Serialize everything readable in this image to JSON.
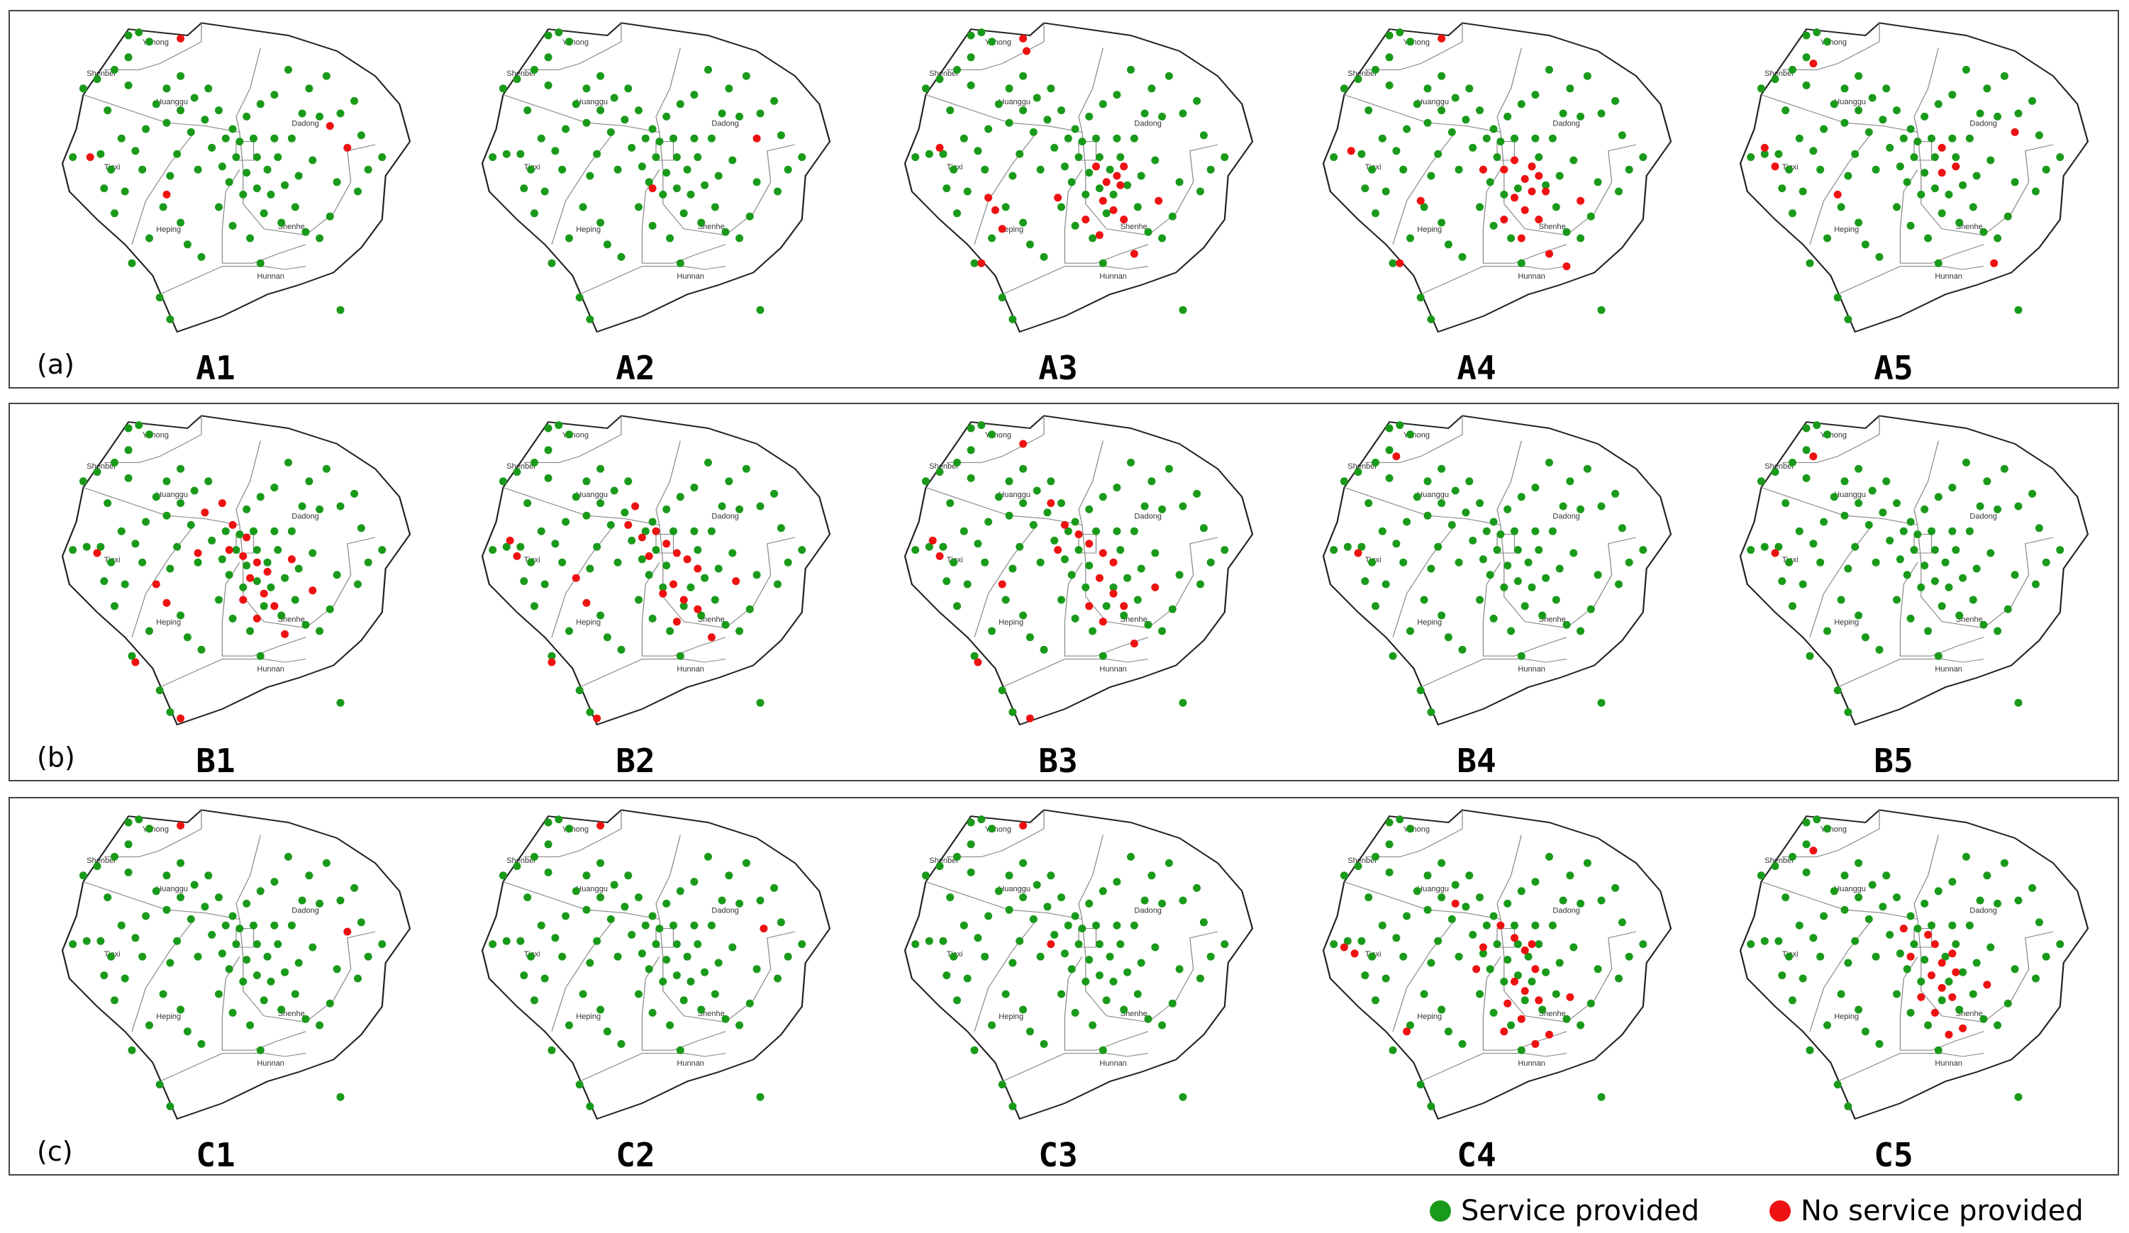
{
  "colors": {
    "service": "#1a9a1a",
    "no_service": "#ee1111",
    "boundary": "#222222",
    "district_line": "#888888"
  },
  "district_labels": {
    "yuhong": "Yuhong",
    "huanggu": "Huanggu",
    "dadong": "Dadong",
    "tiexi": "Tiexi",
    "heping": "Heping",
    "shenhe": "Shenhe",
    "hunnan": "Hunnan",
    "shenbei": "Shenbei"
  },
  "legend": {
    "service_label": "Service provided",
    "no_service_label": "No service provided"
  },
  "panels": [
    {
      "label": "(a)",
      "maps": [
        {
          "title": "A1",
          "red": [
            [
              0.34,
              0.06
            ],
            [
              0.08,
              0.44
            ],
            [
              0.82,
              0.41
            ],
            [
              0.3,
              0.56
            ],
            [
              0.77,
              0.34
            ]
          ]
        },
        {
          "title": "A2",
          "red": [
            [
              0.49,
              0.54
            ],
            [
              0.79,
              0.38
            ]
          ]
        },
        {
          "title": "A3",
          "red": [
            [
              0.34,
              0.06
            ],
            [
              0.1,
              0.41
            ],
            [
              0.24,
              0.57
            ],
            [
              0.26,
              0.61
            ],
            [
              0.28,
              0.67
            ],
            [
              0.55,
              0.47
            ],
            [
              0.58,
              0.52
            ],
            [
              0.61,
              0.5
            ],
            [
              0.57,
              0.58
            ],
            [
              0.6,
              0.61
            ],
            [
              0.63,
              0.64
            ],
            [
              0.52,
              0.64
            ],
            [
              0.56,
              0.69
            ],
            [
              0.66,
              0.75
            ],
            [
              0.73,
              0.58
            ],
            [
              0.63,
              0.47
            ],
            [
              0.62,
              0.53
            ],
            [
              0.44,
              0.57
            ],
            [
              0.22,
              0.78
            ],
            [
              0.35,
              0.1
            ]
          ]
        },
        {
          "title": "A4",
          "red": [
            [
              0.34,
              0.06
            ],
            [
              0.08,
              0.42
            ],
            [
              0.28,
              0.58
            ],
            [
              0.52,
              0.48
            ],
            [
              0.55,
              0.45
            ],
            [
              0.58,
              0.51
            ],
            [
              0.6,
              0.47
            ],
            [
              0.62,
              0.5
            ],
            [
              0.55,
              0.57
            ],
            [
              0.58,
              0.61
            ],
            [
              0.62,
              0.64
            ],
            [
              0.52,
              0.64
            ],
            [
              0.57,
              0.7
            ],
            [
              0.65,
              0.75
            ],
            [
              0.74,
              0.58
            ],
            [
              0.64,
              0.55
            ],
            [
              0.6,
              0.55
            ],
            [
              0.46,
              0.48
            ],
            [
              0.22,
              0.78
            ],
            [
              0.7,
              0.79
            ]
          ]
        },
        {
          "title": "A5",
          "red": [
            [
              0.07,
              0.41
            ],
            [
              0.1,
              0.47
            ],
            [
              0.21,
              0.14
            ],
            [
              0.28,
              0.56
            ],
            [
              0.58,
              0.49
            ],
            [
              0.62,
              0.47
            ],
            [
              0.58,
              0.41
            ],
            [
              0.79,
              0.36
            ],
            [
              0.73,
              0.78
            ]
          ]
        }
      ]
    },
    {
      "label": "(b)",
      "maps": [
        {
          "title": "B1",
          "red": [
            [
              0.1,
              0.45
            ],
            [
              0.27,
              0.55
            ],
            [
              0.49,
              0.36
            ],
            [
              0.53,
              0.4
            ],
            [
              0.48,
              0.44
            ],
            [
              0.52,
              0.46
            ],
            [
              0.56,
              0.48
            ],
            [
              0.59,
              0.51
            ],
            [
              0.54,
              0.53
            ],
            [
              0.58,
              0.58
            ],
            [
              0.61,
              0.62
            ],
            [
              0.52,
              0.6
            ],
            [
              0.56,
              0.66
            ],
            [
              0.64,
              0.71
            ],
            [
              0.72,
              0.57
            ],
            [
              0.66,
              0.47
            ],
            [
              0.3,
              0.61
            ],
            [
              0.21,
              0.8
            ],
            [
              0.39,
              0.45
            ],
            [
              0.41,
              0.32
            ],
            [
              0.46,
              0.29
            ],
            [
              0.34,
              0.98
            ]
          ]
        },
        {
          "title": "B2",
          "red": [
            [
              0.08,
              0.41
            ],
            [
              0.1,
              0.46
            ],
            [
              0.27,
              0.53
            ],
            [
              0.3,
              0.61
            ],
            [
              0.46,
              0.4
            ],
            [
              0.5,
              0.38
            ],
            [
              0.53,
              0.42
            ],
            [
              0.48,
              0.46
            ],
            [
              0.56,
              0.45
            ],
            [
              0.59,
              0.47
            ],
            [
              0.62,
              0.5
            ],
            [
              0.55,
              0.55
            ],
            [
              0.58,
              0.6
            ],
            [
              0.62,
              0.63
            ],
            [
              0.52,
              0.58
            ],
            [
              0.56,
              0.67
            ],
            [
              0.66,
              0.72
            ],
            [
              0.73,
              0.54
            ],
            [
              0.2,
              0.8
            ],
            [
              0.42,
              0.36
            ],
            [
              0.44,
              0.3
            ],
            [
              0.33,
              0.98
            ]
          ]
        },
        {
          "title": "B3",
          "red": [
            [
              0.08,
              0.41
            ],
            [
              0.1,
              0.46
            ],
            [
              0.28,
              0.55
            ],
            [
              0.34,
              0.1
            ],
            [
              0.46,
              0.36
            ],
            [
              0.5,
              0.39
            ],
            [
              0.53,
              0.42
            ],
            [
              0.57,
              0.45
            ],
            [
              0.6,
              0.48
            ],
            [
              0.56,
              0.53
            ],
            [
              0.6,
              0.58
            ],
            [
              0.63,
              0.62
            ],
            [
              0.53,
              0.62
            ],
            [
              0.57,
              0.67
            ],
            [
              0.66,
              0.74
            ],
            [
              0.72,
              0.56
            ],
            [
              0.42,
              0.29
            ],
            [
              0.44,
              0.44
            ],
            [
              0.21,
              0.8
            ],
            [
              0.36,
              0.98
            ]
          ]
        },
        {
          "title": "B4",
          "red": [
            [
              0.1,
              0.45
            ],
            [
              0.21,
              0.14
            ]
          ]
        },
        {
          "title": "B5",
          "red": [
            [
              0.1,
              0.45
            ],
            [
              0.21,
              0.14
            ]
          ]
        }
      ]
    },
    {
      "label": "(c)",
      "maps": [
        {
          "title": "C1",
          "red": [
            [
              0.82,
              0.4
            ],
            [
              0.34,
              0.06
            ]
          ]
        },
        {
          "title": "C2",
          "red": [
            [
              0.34,
              0.06
            ],
            [
              0.81,
              0.39
            ]
          ]
        },
        {
          "title": "C3",
          "red": [
            [
              0.34,
              0.06
            ],
            [
              0.42,
              0.44
            ]
          ]
        },
        {
          "title": "C4",
          "red": [
            [
              0.06,
              0.45
            ],
            [
              0.09,
              0.47
            ],
            [
              0.24,
              0.72
            ],
            [
              0.51,
              0.38
            ],
            [
              0.55,
              0.42
            ],
            [
              0.58,
              0.46
            ],
            [
              0.61,
              0.52
            ],
            [
              0.55,
              0.56
            ],
            [
              0.58,
              0.59
            ],
            [
              0.62,
              0.62
            ],
            [
              0.53,
              0.63
            ],
            [
              0.57,
              0.68
            ],
            [
              0.65,
              0.73
            ],
            [
              0.71,
              0.61
            ],
            [
              0.6,
              0.44
            ],
            [
              0.44,
              0.52
            ],
            [
              0.46,
              0.45
            ],
            [
              0.38,
              0.31
            ],
            [
              0.52,
              0.72
            ],
            [
              0.61,
              0.76
            ]
          ]
        },
        {
          "title": "C5",
          "red": [
            [
              0.21,
              0.14
            ],
            [
              0.54,
              0.41
            ],
            [
              0.56,
              0.44
            ],
            [
              0.58,
              0.5
            ],
            [
              0.61,
              0.47
            ],
            [
              0.55,
              0.54
            ],
            [
              0.58,
              0.58
            ],
            [
              0.61,
              0.61
            ],
            [
              0.52,
              0.61
            ],
            [
              0.56,
              0.66
            ],
            [
              0.64,
              0.71
            ],
            [
              0.71,
              0.57
            ],
            [
              0.49,
              0.48
            ],
            [
              0.47,
              0.39
            ],
            [
              0.62,
              0.53
            ],
            [
              0.6,
              0.73
            ]
          ]
        }
      ]
    }
  ]
}
